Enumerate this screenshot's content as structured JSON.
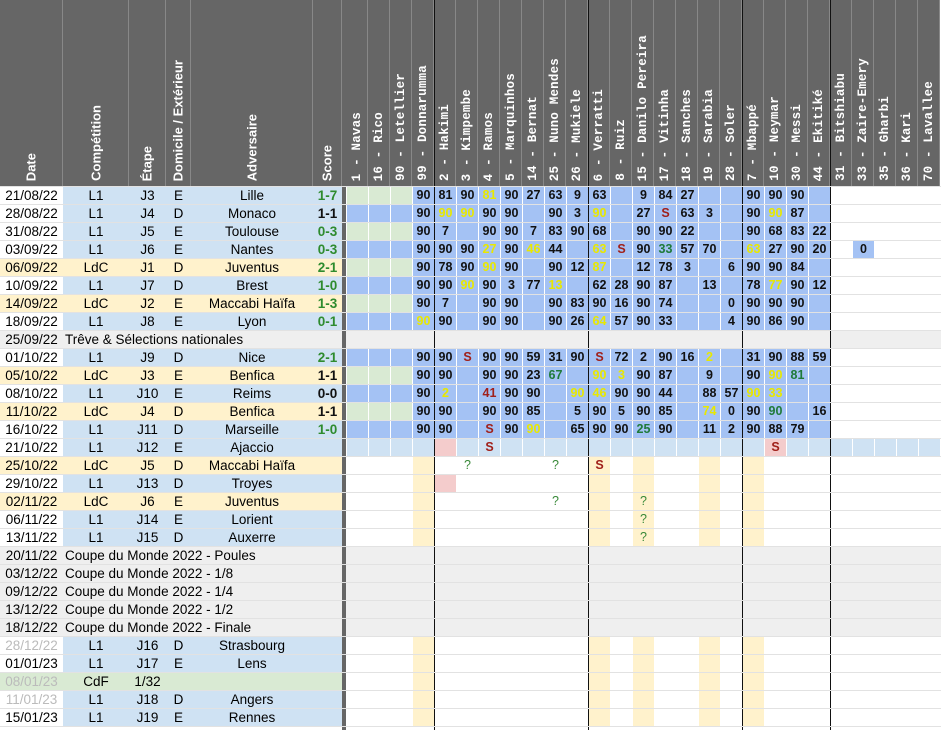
{
  "headers": {
    "date": "Date",
    "competition": "Compétition",
    "stage": "Étape",
    "home_away": "Domicile / Extérieur",
    "opponent": "Adversaire",
    "score": "Score"
  },
  "players": [
    "1 - Navas",
    "16 - Rico",
    "90 - Letellier",
    "99 - Donnarumma",
    "2 - Hakimi",
    "3 - Kimpembe",
    "4 - Ramos",
    "5 - Marquinhos",
    "14 - Bernat",
    "25 - Nuno Mendes",
    "26 - Mukiele",
    "6 - Verratti",
    "8 - Ruiz",
    "15 - Danilo Pereira",
    "17 - Vitinha",
    "18 - Sanches",
    "19 - Sarabia",
    "28 - Soler",
    "7 - Mbappé",
    "10 - Neymar",
    "30 - Messi",
    "44 - Ekitiké",
    "31 - Bitshiabu",
    "33 - Zaire-Emery",
    "35 - Gharbi",
    "36 - Kari",
    "70 - Lavallee"
  ],
  "colors": {
    "blue": "#a4c2f4",
    "lightblue": "#cfe2f3",
    "green": "#d9ead3",
    "lightgreen": "#d9ead3",
    "yellow": "#fff2cc",
    "pink": "#f4cccc",
    "gray": "#efefef",
    "lavender": "#d9d2e9",
    "header": "#666666"
  },
  "rows": [
    {
      "date": "21/08/22",
      "comp": "L1",
      "stage": "J3",
      "ha": "E",
      "opp": "Lille",
      "score": "1-7",
      "res": "win",
      "bg": "white",
      "cells": [
        "",
        "",
        "",
        "90",
        "81",
        "90",
        "81",
        "90",
        "27",
        "63",
        "9",
        "63",
        "",
        "9",
        "84",
        "27",
        "",
        "",
        "90",
        "90",
        "90",
        "",
        "",
        "",
        "",
        "",
        ""
      ]
    },
    {
      "date": "28/08/22",
      "comp": "L1",
      "stage": "J4",
      "ha": "D",
      "opp": "Monaco",
      "score": "1-1",
      "res": "draw",
      "bg": "white",
      "cells": [
        "",
        "",
        "",
        "90",
        "90",
        "90",
        "90",
        "90",
        "",
        "90",
        "3",
        "90",
        "",
        "27",
        "S",
        "63",
        "3",
        "",
        "90",
        "90",
        "87",
        "",
        "",
        "",
        "",
        "",
        ""
      ]
    },
    {
      "date": "31/08/22",
      "comp": "L1",
      "stage": "J5",
      "ha": "E",
      "opp": "Toulouse",
      "score": "0-3",
      "res": "win",
      "bg": "white",
      "cells": [
        "",
        "",
        "",
        "90",
        "7",
        "",
        "90",
        "90",
        "7",
        "83",
        "90",
        "68",
        "",
        "90",
        "90",
        "22",
        "",
        "",
        "90",
        "68",
        "83",
        "22",
        "",
        "",
        "",
        "",
        ""
      ]
    },
    {
      "date": "03/09/22",
      "comp": "L1",
      "stage": "J6",
      "ha": "E",
      "opp": "Nantes",
      "score": "0-3",
      "res": "win",
      "bg": "white",
      "cells": [
        "",
        "",
        "",
        "90",
        "90",
        "90",
        "27",
        "90",
        "46",
        "44",
        "",
        "63",
        "S",
        "90",
        "33",
        "57",
        "70",
        "",
        "63",
        "27",
        "90",
        "20",
        "",
        "0",
        "",
        "",
        ""
      ]
    },
    {
      "date": "06/09/22",
      "comp": "LdC",
      "stage": "J1",
      "ha": "D",
      "opp": "Juventus",
      "score": "2-1",
      "res": "win",
      "bg": "yellow",
      "cells": [
        "",
        "",
        "",
        "90",
        "78",
        "90",
        "90",
        "90",
        "",
        "90",
        "12",
        "87",
        "",
        "12",
        "78",
        "3",
        "",
        "6",
        "90",
        "90",
        "84",
        "",
        "",
        "",
        "",
        "",
        ""
      ]
    },
    {
      "date": "10/09/22",
      "comp": "L1",
      "stage": "J7",
      "ha": "D",
      "opp": "Brest",
      "score": "1-0",
      "res": "win",
      "bg": "white",
      "cells": [
        "",
        "",
        "",
        "90",
        "90",
        "90",
        "90",
        "3",
        "77",
        "13",
        "",
        "62",
        "28",
        "90",
        "87",
        "",
        "13",
        "",
        "78",
        "77",
        "90",
        "12",
        "",
        "",
        "",
        "",
        ""
      ]
    },
    {
      "date": "14/09/22",
      "comp": "LdC",
      "stage": "J2",
      "ha": "E",
      "opp": "Maccabi Haïfa",
      "score": "1-3",
      "res": "win",
      "bg": "yellow",
      "cells": [
        "",
        "",
        "",
        "90",
        "7",
        "",
        "90",
        "90",
        "",
        "90",
        "83",
        "90",
        "16",
        "90",
        "74",
        "",
        "",
        "0",
        "90",
        "90",
        "90",
        "",
        "",
        "",
        "",
        "",
        ""
      ]
    },
    {
      "date": "18/09/22",
      "comp": "L1",
      "stage": "J8",
      "ha": "E",
      "opp": "Lyon",
      "score": "0-1",
      "res": "win",
      "bg": "white",
      "cells": [
        "",
        "",
        "",
        "90",
        "90",
        "",
        "90",
        "90",
        "",
        "90",
        "26",
        "64",
        "57",
        "90",
        "33",
        "",
        "",
        "4",
        "90",
        "86",
        "90",
        "",
        "",
        "",
        "",
        "",
        ""
      ]
    },
    {
      "date": "25/09/22",
      "comp": "Trêve & Sélections nationales",
      "stage": "",
      "ha": "",
      "opp": "",
      "score": "",
      "res": "",
      "bg": "gray",
      "span": true,
      "cells": []
    },
    {
      "date": "01/10/22",
      "comp": "L1",
      "stage": "J9",
      "ha": "D",
      "opp": "Nice",
      "score": "2-1",
      "res": "win",
      "bg": "white",
      "cells": [
        "",
        "",
        "",
        "90",
        "90",
        "S",
        "90",
        "90",
        "59",
        "31",
        "90",
        "S",
        "72",
        "2",
        "90",
        "16",
        "2",
        "",
        "31",
        "90",
        "88",
        "59",
        "",
        "",
        "",
        "",
        ""
      ]
    },
    {
      "date": "05/10/22",
      "comp": "LdC",
      "stage": "J3",
      "ha": "E",
      "opp": "Benfica",
      "score": "1-1",
      "res": "draw",
      "bg": "yellow",
      "cells": [
        "",
        "",
        "",
        "90",
        "90",
        "",
        "90",
        "90",
        "23",
        "67",
        "",
        "90",
        "3",
        "90",
        "87",
        "",
        "9",
        "",
        "90",
        "90",
        "81",
        "",
        "",
        "",
        "",
        "",
        ""
      ]
    },
    {
      "date": "08/10/22",
      "comp": "L1",
      "stage": "J10",
      "ha": "E",
      "opp": "Reims",
      "score": "0-0",
      "res": "draw",
      "bg": "white",
      "cells": [
        "",
        "",
        "",
        "90",
        "2",
        "",
        "41",
        "90",
        "90",
        "",
        "90",
        "46",
        "90",
        "90",
        "44",
        "",
        "88",
        "57",
        "90",
        "33",
        "",
        "",
        "",
        "",
        "",
        "",
        ""
      ]
    },
    {
      "date": "11/10/22",
      "comp": "LdC",
      "stage": "J4",
      "ha": "D",
      "opp": "Benfica",
      "score": "1-1",
      "res": "draw",
      "bg": "yellow",
      "cells": [
        "",
        "",
        "",
        "90",
        "90",
        "",
        "90",
        "90",
        "85",
        "",
        "5",
        "90",
        "5",
        "90",
        "85",
        "",
        "74",
        "0",
        "90",
        "90",
        "",
        "16",
        "",
        "",
        "",
        "",
        ""
      ]
    },
    {
      "date": "16/10/22",
      "comp": "L1",
      "stage": "J11",
      "ha": "D",
      "opp": "Marseille",
      "score": "1-0",
      "res": "win",
      "bg": "white",
      "cells": [
        "",
        "",
        "",
        "90",
        "90",
        "",
        "S",
        "90",
        "90",
        "",
        "65",
        "90",
        "90",
        "25",
        "90",
        "",
        "11",
        "2",
        "90",
        "88",
        "79",
        "",
        "",
        "",
        "",
        "",
        ""
      ]
    },
    {
      "date": "21/10/22",
      "comp": "L1",
      "stage": "J12",
      "ha": "E",
      "opp": "Ajaccio",
      "score": "",
      "res": "",
      "bg": "white",
      "cells": [
        "",
        "",
        "",
        "",
        "",
        "",
        "S",
        "",
        "",
        "",
        "",
        "",
        "",
        "",
        "",
        "",
        "",
        "",
        "",
        "S",
        "",
        "",
        "",
        "",
        "",
        "",
        ""
      ]
    },
    {
      "date": "25/10/22",
      "comp": "LdC",
      "stage": "J5",
      "ha": "D",
      "opp": "Maccabi Haïfa",
      "score": "",
      "res": "",
      "bg": "yellow",
      "cells": [
        "",
        "",
        "",
        "",
        "",
        "?",
        "",
        "",
        "",
        "?",
        "",
        "S",
        "",
        "",
        "",
        "",
        "",
        "",
        "",
        "",
        "",
        "",
        "",
        "",
        "",
        "",
        ""
      ]
    },
    {
      "date": "29/10/22",
      "comp": "L1",
      "stage": "J13",
      "ha": "D",
      "opp": "Troyes",
      "score": "",
      "res": "",
      "bg": "white",
      "cells": [
        "",
        "",
        "",
        "",
        "",
        "",
        "",
        "",
        "",
        "",
        "",
        "",
        "",
        "",
        "",
        "",
        "",
        "",
        "",
        "",
        "",
        "",
        "",
        "",
        "",
        "",
        ""
      ]
    },
    {
      "date": "02/11/22",
      "comp": "LdC",
      "stage": "J6",
      "ha": "E",
      "opp": "Juventus",
      "score": "",
      "res": "",
      "bg": "yellow",
      "cells": [
        "",
        "",
        "",
        "",
        "",
        "",
        "",
        "",
        "",
        "?",
        "",
        "",
        "",
        "?",
        "",
        "",
        "",
        "",
        "",
        "",
        "",
        "",
        "",
        "",
        "",
        "",
        ""
      ]
    },
    {
      "date": "06/11/22",
      "comp": "L1",
      "stage": "J14",
      "ha": "E",
      "opp": "Lorient",
      "score": "",
      "res": "",
      "bg": "white",
      "cells": [
        "",
        "",
        "",
        "",
        "",
        "",
        "",
        "",
        "",
        "",
        "",
        "",
        "",
        "?",
        "",
        "",
        "",
        "",
        "",
        "",
        "",
        "",
        "",
        "",
        "",
        "",
        ""
      ]
    },
    {
      "date": "13/11/22",
      "comp": "L1",
      "stage": "J15",
      "ha": "D",
      "opp": "Auxerre",
      "score": "",
      "res": "",
      "bg": "white",
      "cells": [
        "",
        "",
        "",
        "",
        "",
        "",
        "",
        "",
        "",
        "",
        "",
        "",
        "",
        "?",
        "",
        "",
        "",
        "",
        "",
        "",
        "",
        "",
        "",
        "",
        "",
        "",
        ""
      ]
    },
    {
      "date": "20/11/22",
      "comp": "Coupe du Monde 2022 - Poules",
      "stage": "",
      "ha": "",
      "opp": "",
      "score": "",
      "res": "",
      "bg": "gray",
      "span": true,
      "cells": []
    },
    {
      "date": "03/12/22",
      "comp": "Coupe du Monde 2022 - 1/8",
      "stage": "",
      "ha": "",
      "opp": "",
      "score": "",
      "res": "",
      "bg": "gray",
      "span": true,
      "cells": []
    },
    {
      "date": "09/12/22",
      "comp": "Coupe du Monde 2022 - 1/4",
      "stage": "",
      "ha": "",
      "opp": "",
      "score": "",
      "res": "",
      "bg": "gray",
      "span": true,
      "cells": []
    },
    {
      "date": "13/12/22",
      "comp": "Coupe du Monde 2022 - 1/2",
      "stage": "",
      "ha": "",
      "opp": "",
      "score": "",
      "res": "",
      "bg": "gray",
      "span": true,
      "cells": []
    },
    {
      "date": "18/12/22",
      "comp": "Coupe du Monde 2022 - Finale",
      "stage": "",
      "ha": "",
      "opp": "",
      "score": "",
      "res": "",
      "bg": "gray",
      "span": true,
      "cells": []
    },
    {
      "date": "28/12/22",
      "comp": "L1",
      "stage": "J16",
      "ha": "D",
      "opp": "Strasbourg",
      "score": "",
      "res": "",
      "bg": "white",
      "dim": true,
      "cells": []
    },
    {
      "date": "01/01/23",
      "comp": "L1",
      "stage": "J17",
      "ha": "E",
      "opp": "Lens",
      "score": "",
      "res": "",
      "bg": "white",
      "cells": []
    },
    {
      "date": "08/01/23",
      "comp": "CdF",
      "stage": "1/32",
      "ha": "",
      "opp": "",
      "score": "",
      "res": "",
      "bg": "green",
      "dim": true,
      "cells": []
    },
    {
      "date": "11/01/23",
      "comp": "L1",
      "stage": "J18",
      "ha": "D",
      "opp": "Angers",
      "score": "",
      "res": "",
      "bg": "white",
      "dim": true,
      "cells": []
    },
    {
      "date": "15/01/23",
      "comp": "L1",
      "stage": "J19",
      "ha": "E",
      "opp": "Rennes",
      "score": "",
      "res": "",
      "bg": "white",
      "cells": []
    }
  ]
}
